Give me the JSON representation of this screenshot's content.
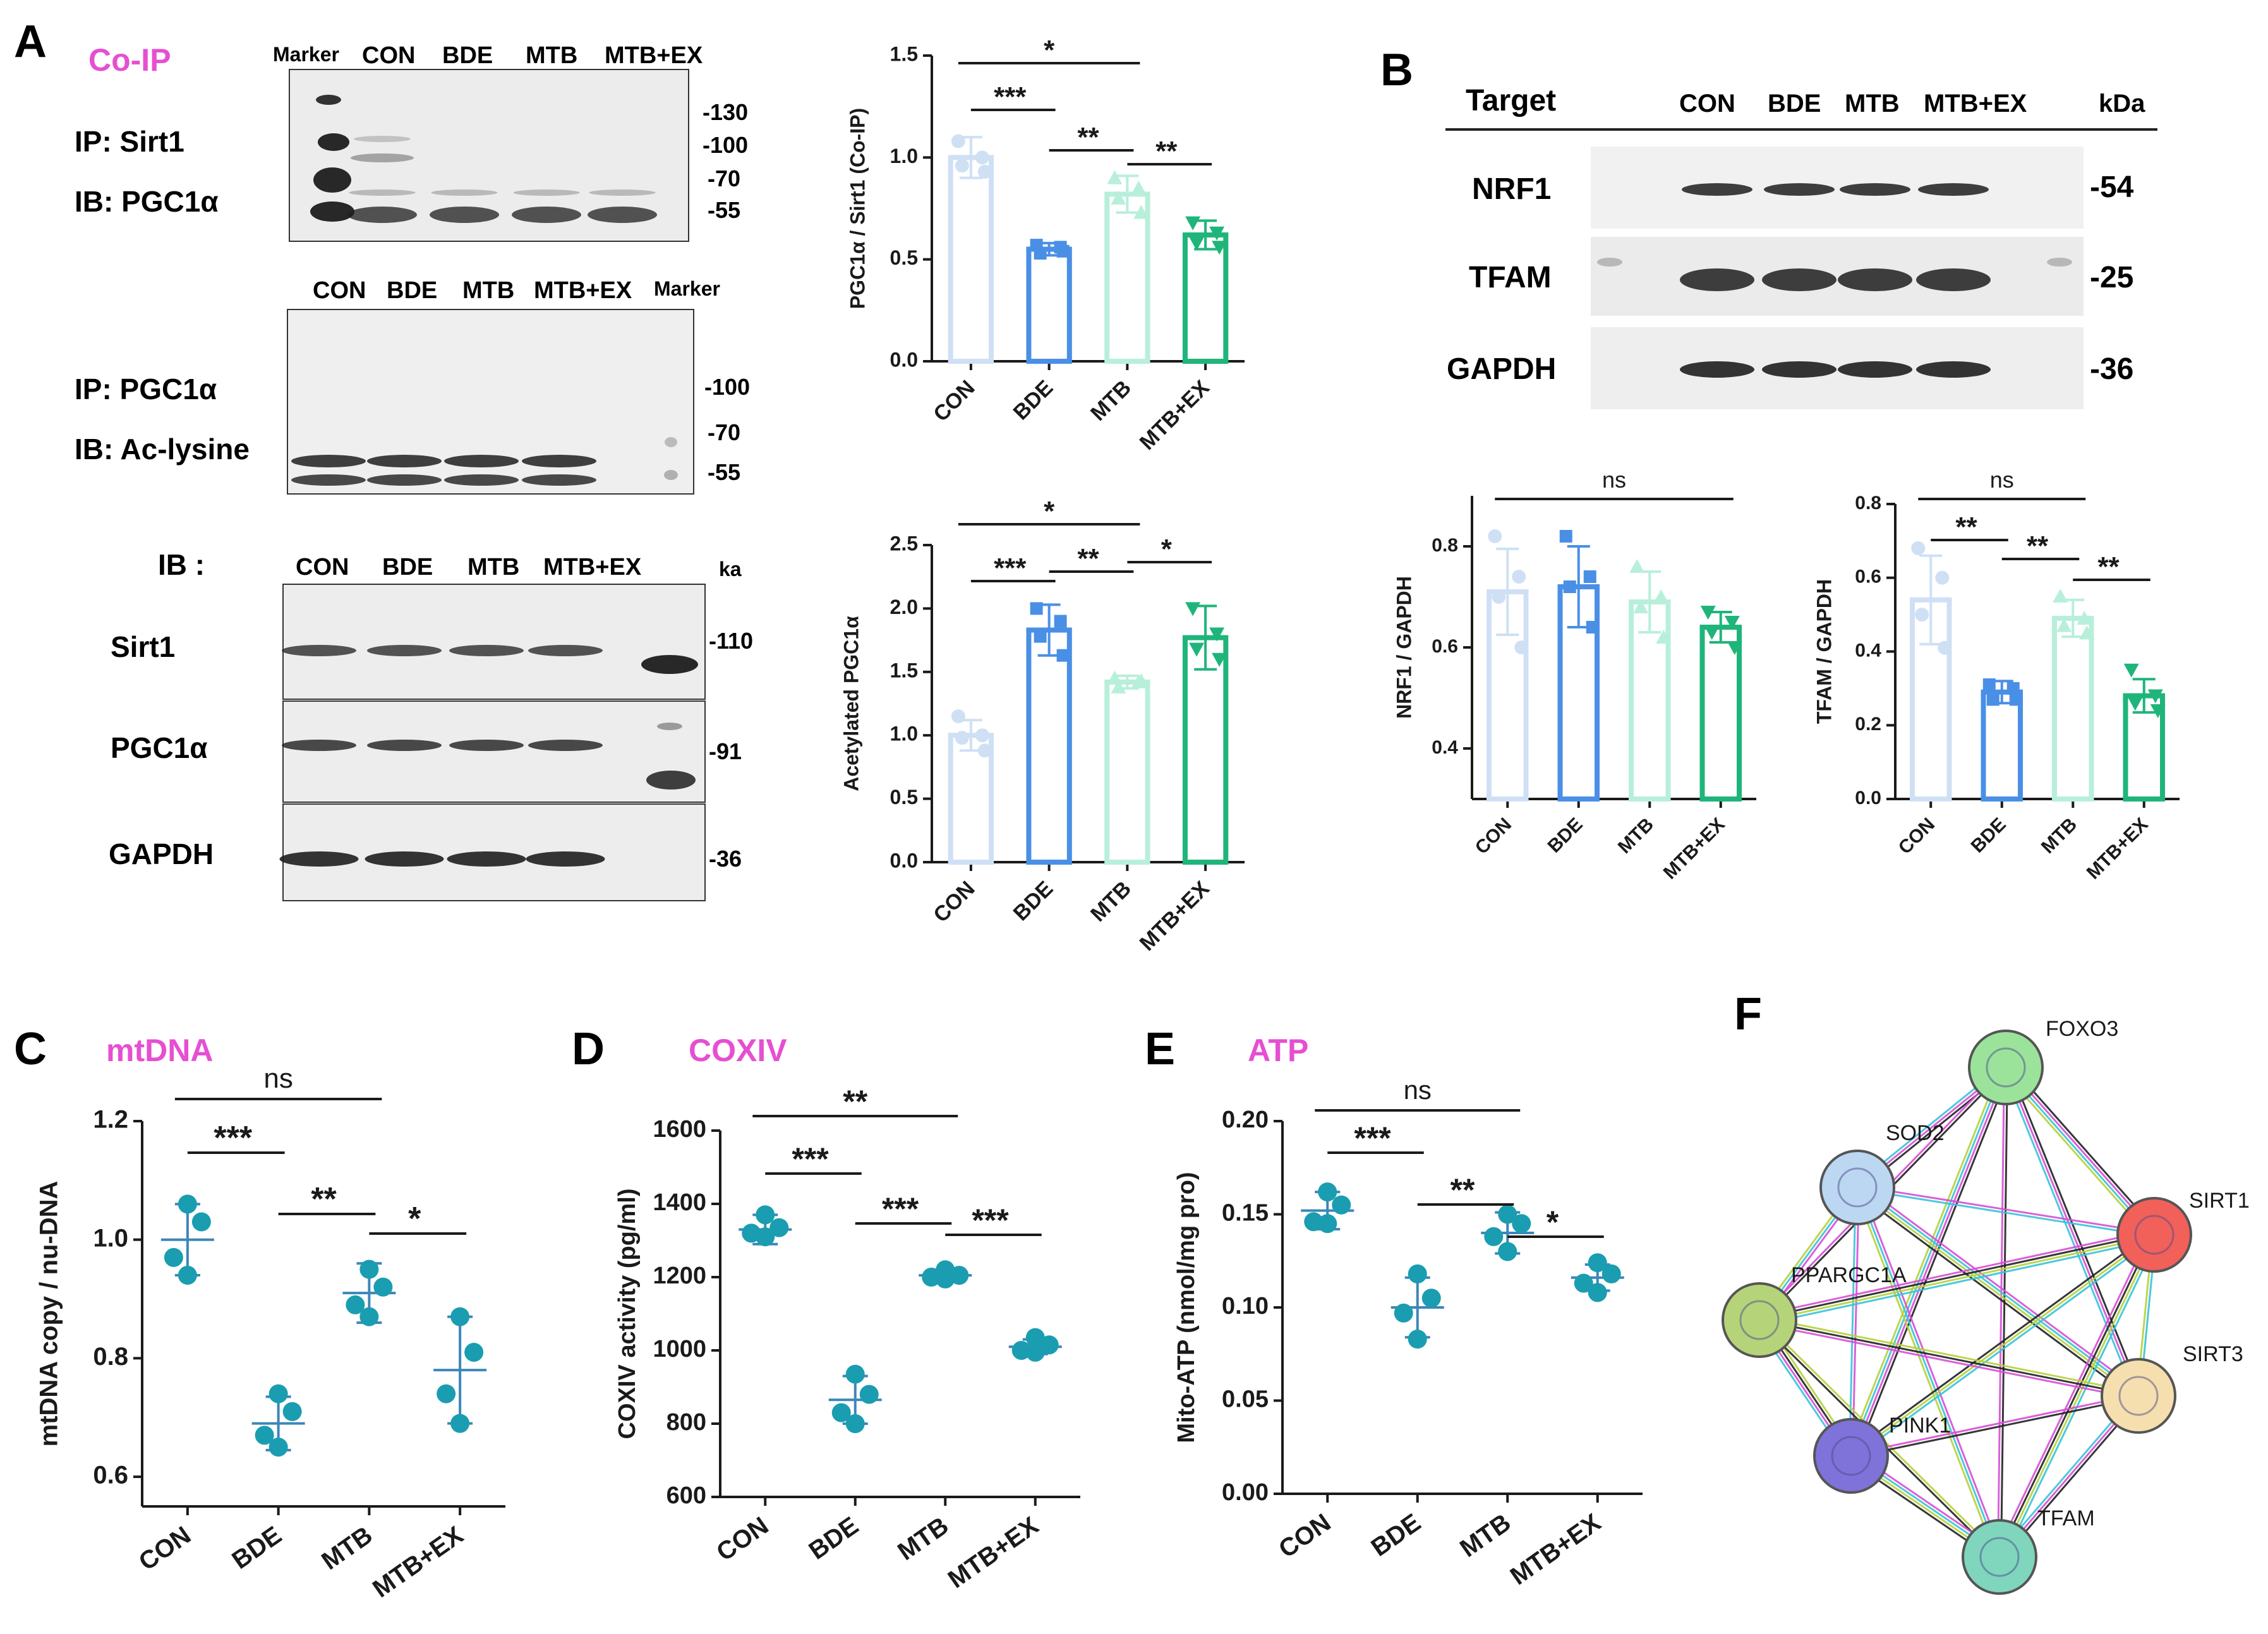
{
  "groups": [
    "CON",
    "BDE",
    "MTB",
    "MTB+EX"
  ],
  "colors": {
    "bar_fill": [
      "#cfe0f5",
      "#4a8fe6",
      "#b8efdb",
      "#1fb57a"
    ],
    "dot_teal": "#1a9db0",
    "label_pink": "#e64fd2",
    "text": "#1a1a1a"
  },
  "panels": {
    "A": {
      "letter": "A",
      "title": "Co-IP",
      "blot1": {
        "lanes": [
          "Marker",
          "CON",
          "BDE",
          "MTB",
          "MTB+EX"
        ],
        "ip": "IP: Sirt1",
        "ib": "IB: PGC1α",
        "markers": [
          "-130",
          "-100",
          "-70",
          "-55"
        ]
      },
      "blot2": {
        "lanes": [
          "CON",
          "BDE",
          "MTB",
          "MTB+EX",
          "Marker"
        ],
        "ip": "IP: PGC1α",
        "ib": "IB: Ac-lysine",
        "markers": [
          "-100",
          "-70",
          "-55"
        ]
      },
      "blot3": {
        "header": "IB :",
        "lanes": [
          "CON",
          "BDE",
          "MTB",
          "MTB+EX"
        ],
        "unit": "ka",
        "rows": [
          {
            "name": "Sirt1",
            "marker": "-110"
          },
          {
            "name": "PGC1α",
            "marker": "-91"
          },
          {
            "name": "GAPDH",
            "marker": "-36"
          }
        ]
      }
    },
    "B": {
      "letter": "B",
      "header": "Target",
      "lanes": [
        "CON",
        "BDE",
        "MTB",
        "MTB+EX"
      ],
      "unit": "kDa",
      "rows": [
        {
          "name": "NRF1",
          "marker": "-54"
        },
        {
          "name": "TFAM",
          "marker": "-25"
        },
        {
          "name": "GAPDH",
          "marker": "-36"
        }
      ]
    },
    "C": {
      "letter": "C",
      "title": "mtDNA"
    },
    "D": {
      "letter": "D",
      "title": "COXIV"
    },
    "E": {
      "letter": "E",
      "title": "ATP"
    },
    "F": {
      "letter": "F",
      "nodes": [
        {
          "name": "FOXO3",
          "color": "#9be39b"
        },
        {
          "name": "SOD2",
          "color": "#bcd7f2"
        },
        {
          "name": "SIRT1",
          "color": "#f2605a"
        },
        {
          "name": "PPARGC1A",
          "color": "#b5d47a"
        },
        {
          "name": "SIRT3",
          "color": "#f6dfae"
        },
        {
          "name": "PINK1",
          "color": "#7f72d9"
        },
        {
          "name": "TFAM",
          "color": "#7fd6bd"
        }
      ]
    }
  },
  "chart_data": [
    {
      "id": "A1",
      "type": "bar",
      "ylabel": "PGC1α / Sirt1  (Co-IP)",
      "categories": [
        "CON",
        "BDE",
        "MTB",
        "MTB+EX"
      ],
      "values": [
        1.0,
        0.55,
        0.82,
        0.62
      ],
      "errors": [
        0.1,
        0.03,
        0.09,
        0.07
      ],
      "points": [
        [
          1.08,
          1.0,
          0.96,
          0.93
        ],
        [
          0.57,
          0.56,
          0.53,
          0.54
        ],
        [
          0.9,
          0.85,
          0.8,
          0.73
        ],
        [
          0.68,
          0.63,
          0.58,
          0.56
        ]
      ],
      "ylim": [
        0,
        1.5
      ],
      "yticks": [
        0.0,
        0.5,
        1.0,
        1.5
      ],
      "signif": [
        [
          "*",
          0,
          2
        ],
        [
          "***",
          0,
          1
        ],
        [
          "**",
          1,
          2
        ],
        [
          "**",
          2,
          3
        ]
      ]
    },
    {
      "id": "A2",
      "type": "bar",
      "ylabel": "Acetylated PGC1α",
      "categories": [
        "CON",
        "BDE",
        "MTB",
        "MTB+EX"
      ],
      "values": [
        1.0,
        1.83,
        1.42,
        1.77
      ],
      "errors": [
        0.12,
        0.2,
        0.05,
        0.25
      ],
      "points": [
        [
          1.15,
          1.0,
          0.98,
          0.88
        ],
        [
          2.0,
          1.9,
          1.78,
          1.63
        ],
        [
          1.45,
          1.42,
          1.38,
          1.43
        ],
        [
          2.0,
          1.8,
          1.68,
          1.6
        ]
      ],
      "ylim": [
        0,
        2.5
      ],
      "yticks": [
        0.0,
        0.5,
        1.0,
        1.5,
        2.0,
        2.5
      ],
      "signif": [
        [
          "*",
          0,
          2
        ],
        [
          "***",
          0,
          1
        ],
        [
          "**",
          1,
          2
        ],
        [
          "*",
          2,
          3
        ]
      ]
    },
    {
      "id": "B1",
      "type": "bar",
      "ylabel": "NRF1 / GAPDH",
      "categories": [
        "CON",
        "BDE",
        "MTB",
        "MTB+EX"
      ],
      "values": [
        0.71,
        0.72,
        0.69,
        0.64
      ],
      "errors": [
        0.085,
        0.08,
        0.06,
        0.03
      ],
      "points": [
        [
          0.82,
          0.74,
          0.7,
          0.6
        ],
        [
          0.82,
          0.74,
          0.72,
          0.64
        ],
        [
          0.76,
          0.7,
          0.68,
          0.62
        ],
        [
          0.67,
          0.65,
          0.63,
          0.6
        ]
      ],
      "ylim": [
        0.3,
        0.9
      ],
      "yticks": [
        0.4,
        0.6,
        0.8
      ],
      "signif": [
        [
          "ns",
          0,
          3
        ]
      ]
    },
    {
      "id": "B2",
      "type": "bar",
      "ylabel": "TFAM / GAPDH",
      "categories": [
        "CON",
        "BDE",
        "MTB",
        "MTB+EX"
      ],
      "values": [
        0.54,
        0.29,
        0.49,
        0.28
      ],
      "errors": [
        0.12,
        0.03,
        0.05,
        0.045
      ],
      "points": [
        [
          0.68,
          0.6,
          0.5,
          0.41
        ],
        [
          0.31,
          0.3,
          0.27,
          0.27
        ],
        [
          0.55,
          0.49,
          0.47,
          0.45
        ],
        [
          0.35,
          0.28,
          0.26,
          0.24
        ]
      ],
      "ylim": [
        0,
        0.8
      ],
      "yticks": [
        0.0,
        0.2,
        0.4,
        0.6,
        0.8
      ],
      "signif": [
        [
          "ns",
          0,
          2
        ],
        [
          "**",
          0,
          1
        ],
        [
          "**",
          1,
          2
        ],
        [
          "**",
          2,
          3
        ]
      ]
    },
    {
      "id": "C",
      "type": "scatter",
      "ylabel": "mtDNA copy / nu-DNA",
      "categories": [
        "CON",
        "BDE",
        "MTB",
        "MTB+EX"
      ],
      "means": [
        1.0,
        0.69,
        0.91,
        0.78
      ],
      "errors": [
        0.06,
        0.045,
        0.05,
        0.09
      ],
      "points": [
        [
          1.06,
          1.03,
          0.97,
          0.94
        ],
        [
          0.74,
          0.71,
          0.67,
          0.65
        ],
        [
          0.95,
          0.92,
          0.89,
          0.87
        ],
        [
          0.87,
          0.81,
          0.74,
          0.69
        ]
      ],
      "ylim": [
        0.55,
        1.2
      ],
      "yticks": [
        0.6,
        0.8,
        1.0,
        1.2
      ],
      "signif": [
        [
          "ns",
          0,
          2
        ],
        [
          "***",
          0,
          1
        ],
        [
          "**",
          1,
          2
        ],
        [
          "*",
          2,
          3
        ]
      ]
    },
    {
      "id": "D",
      "type": "scatter",
      "ylabel": "COXIV activity (pg/ml)",
      "categories": [
        "CON",
        "BDE",
        "MTB",
        "MTB+EX"
      ],
      "means": [
        1330,
        865,
        1205,
        1010
      ],
      "errors": [
        40,
        65,
        15,
        20
      ],
      "points": [
        [
          1370,
          1335,
          1320,
          1310
        ],
        [
          935,
          880,
          830,
          800
        ],
        [
          1220,
          1205,
          1200,
          1195
        ],
        [
          1035,
          1015,
          1000,
          995
        ]
      ],
      "ylim": [
        600,
        1600
      ],
      "yticks": [
        600,
        800,
        1000,
        1200,
        1400,
        1600
      ],
      "signif": [
        [
          "**",
          0,
          2
        ],
        [
          "***",
          0,
          1
        ],
        [
          "***",
          1,
          2
        ],
        [
          "***",
          2,
          3
        ]
      ]
    },
    {
      "id": "E",
      "type": "scatter",
      "ylabel": "Mito-ATP (nmol/mg pro)",
      "categories": [
        "CON",
        "BDE",
        "MTB",
        "MTB+EX"
      ],
      "means": [
        0.152,
        0.1,
        0.14,
        0.116
      ],
      "errors": [
        0.01,
        0.016,
        0.011,
        0.007
      ],
      "points": [
        [
          0.162,
          0.155,
          0.146,
          0.145
        ],
        [
          0.118,
          0.105,
          0.097,
          0.083
        ],
        [
          0.15,
          0.145,
          0.138,
          0.13
        ],
        [
          0.124,
          0.118,
          0.113,
          0.108
        ]
      ],
      "ylim": [
        0,
        0.2
      ],
      "yticks": [
        0.0,
        0.05,
        0.1,
        0.15,
        0.2
      ],
      "ytick_labels": [
        "0.00",
        "0.05",
        "0.10",
        "0.15",
        "0.20"
      ],
      "signif": [
        [
          "ns",
          0,
          2
        ],
        [
          "***",
          0,
          1
        ],
        [
          "**",
          1,
          2
        ],
        [
          "*",
          2,
          3
        ]
      ]
    }
  ]
}
